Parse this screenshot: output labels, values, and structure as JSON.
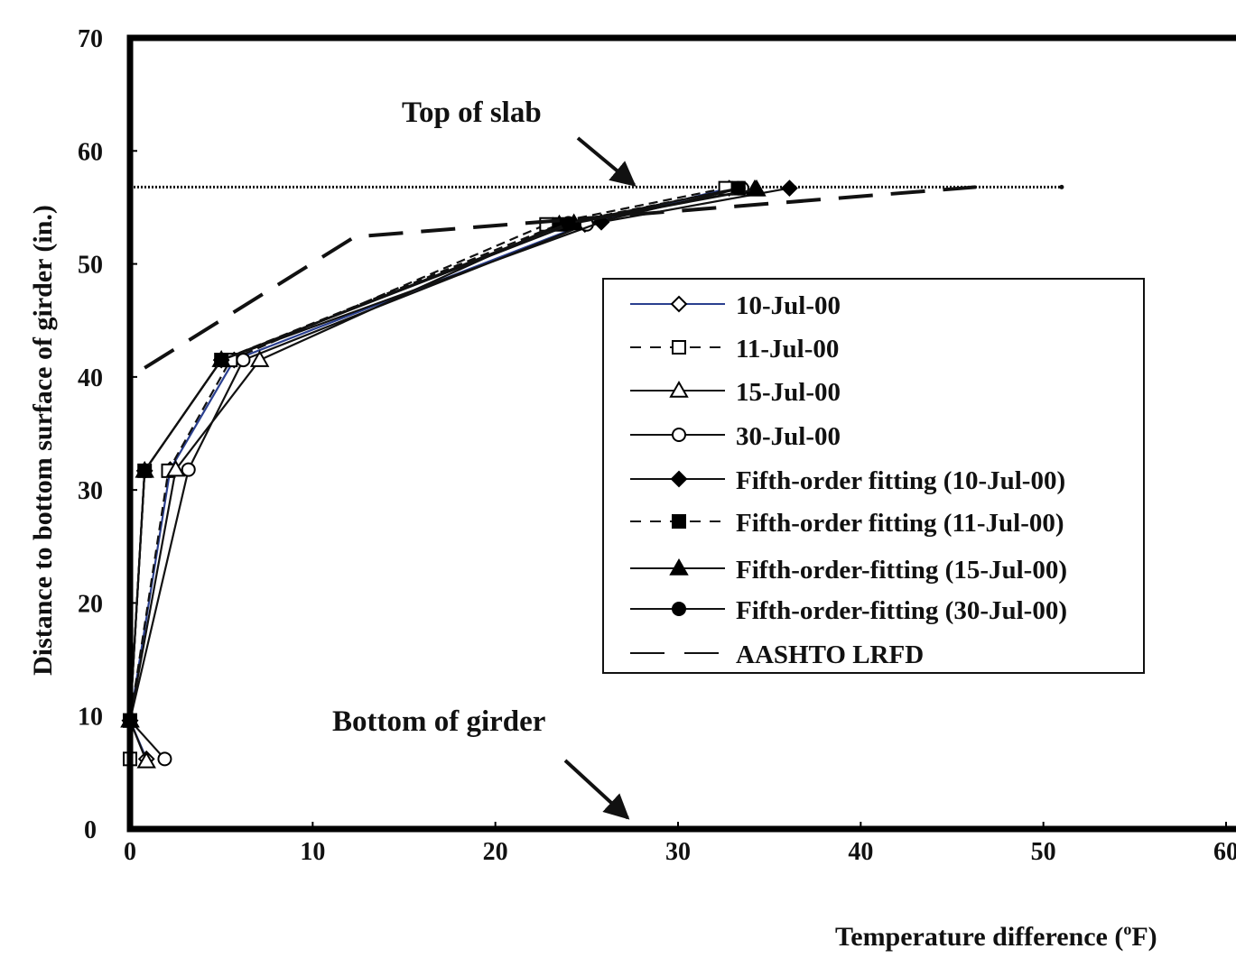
{
  "chart_data": {
    "type": "line",
    "title": "",
    "xlabel": "Temperature difference (°F)",
    "ylabel": "Distance to bottom surface of girder (in.)",
    "xlim": [
      0,
      60
    ],
    "ylim": [
      0,
      70
    ],
    "xticks": [
      "0",
      "10",
      "20",
      "30",
      "40",
      "50",
      "60"
    ],
    "yticks": [
      "0",
      "10",
      "20",
      "30",
      "40",
      "50",
      "60",
      "70"
    ],
    "grid": false,
    "legend_position": "center-right",
    "annotations": [
      {
        "text": "Top of slab",
        "x": 28,
        "y": 56.5
      },
      {
        "text": "Bottom of girder",
        "x": 27,
        "y": 0.5
      }
    ],
    "top_of_slab_line": {
      "y": 56.8,
      "x_start": 0,
      "x_end": 51
    },
    "series": [
      {
        "name": "10-Jul-00",
        "line": "solid",
        "line_color": "#2a3f8f",
        "marker": "diamond-open",
        "x": [
          0.9,
          0,
          2.2,
          5.7,
          24.9,
          32.8
        ],
        "y": [
          6.2,
          9.6,
          31.8,
          41.5,
          53.5,
          56.7
        ]
      },
      {
        "name": "11-Jul-00",
        "line": "dashed",
        "line_color": "#111111",
        "marker": "square-open",
        "x": [
          0,
          0,
          2.1,
          5.5,
          22.8,
          32.6
        ],
        "y": [
          6.2,
          9.6,
          31.7,
          41.5,
          53.5,
          56.7
        ]
      },
      {
        "name": "15-Jul-00",
        "line": "solid",
        "line_color": "#111111",
        "marker": "triangle-open",
        "x": [
          0.9,
          0,
          2.5,
          7.1,
          23.5,
          34.2
        ],
        "y": [
          6.0,
          9.6,
          31.8,
          41.5,
          53.5,
          56.6
        ]
      },
      {
        "name": "30-Jul-00",
        "line": "solid",
        "line_color": "#111111",
        "marker": "circle-open",
        "x": [
          1.9,
          0,
          3.2,
          6.2,
          25.0,
          33.5
        ],
        "y": [
          6.2,
          9.6,
          31.8,
          41.5,
          53.5,
          56.7
        ]
      },
      {
        "name": "Fifth-order fitting (10-Jul-00)",
        "line": "solid",
        "line_color": "#111111",
        "marker": "diamond-filled",
        "x": [
          0,
          0.8,
          5.0,
          25.8,
          36.1
        ],
        "y": [
          9.6,
          31.7,
          41.5,
          53.7,
          56.7
        ]
      },
      {
        "name": "Fifth-order fitting (11-Jul-00)",
        "line": "dashed",
        "line_color": "#111111",
        "marker": "square-filled",
        "x": [
          0,
          0.8,
          5.0,
          23.5,
          33.3
        ],
        "y": [
          9.6,
          31.7,
          41.5,
          53.5,
          56.7
        ]
      },
      {
        "name": "Fifth-order-fitting (15-Jul-00)",
        "line": "solid",
        "line_color": "#111111",
        "marker": "triangle-filled",
        "x": [
          0,
          0.8,
          5.0,
          24.3,
          34.3
        ],
        "y": [
          9.6,
          31.7,
          41.5,
          53.6,
          56.6
        ]
      },
      {
        "name": "Fifth-order-fitting (30-Jul-00)",
        "line": "solid",
        "line_color": "#111111",
        "marker": "circle-filled",
        "x": [
          0,
          0.8,
          5.0,
          24.0,
          33.3
        ],
        "y": [
          9.6,
          31.7,
          41.5,
          53.6,
          56.7
        ]
      },
      {
        "name": "AASHTO LRFD",
        "line": "longdash",
        "line_color": "#111111",
        "marker": "none",
        "x": [
          0.8,
          12.3,
          46.3
        ],
        "y": [
          40.8,
          52.4,
          56.8
        ]
      }
    ]
  }
}
